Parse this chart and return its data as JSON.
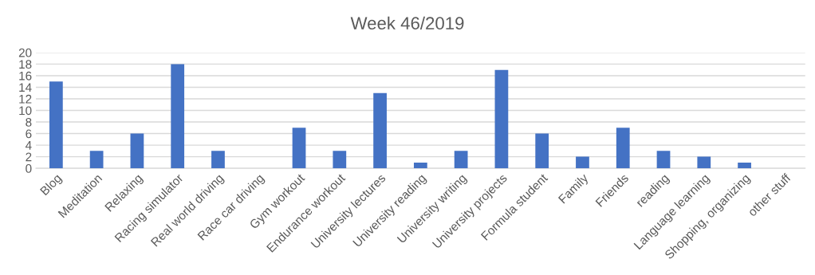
{
  "chart_data": {
    "type": "bar",
    "title": "Week 46/2019",
    "categories": [
      "Blog",
      "Meditation",
      "Relaxing",
      "Racing simulator",
      "Real world driving",
      "Race car driving",
      "Gym workout",
      "Endurance workout",
      "University lectures",
      "University reading",
      "University writing",
      "University projects",
      "Formula student",
      "Family",
      "Friends",
      "reading",
      "Language learning",
      "Shopping, organizing",
      "other stuff"
    ],
    "values": [
      15,
      3,
      6,
      18,
      3,
      0,
      7,
      3,
      13,
      1,
      3,
      17,
      6,
      2,
      7,
      3,
      2,
      1,
      0
    ],
    "color": "#4472c4",
    "ylim": [
      0,
      20
    ],
    "yticks": [
      0,
      2,
      4,
      6,
      8,
      10,
      12,
      14,
      16,
      18,
      20
    ],
    "grid": "y",
    "legend": false
  }
}
